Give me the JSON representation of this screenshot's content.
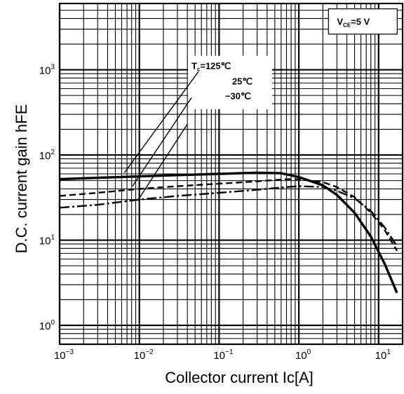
{
  "chart_data": {
    "type": "line",
    "title": "",
    "xlabel": "Collector current   Ic[A]",
    "ylabel": "D.C. current gain   hFE",
    "x_scale": "log",
    "y_scale": "log",
    "xlim": [
      0.001,
      20
    ],
    "ylim": [
      0.6,
      6000
    ],
    "grid": true,
    "x_ticks": [
      {
        "value": 0.001,
        "base": "10",
        "exp": "−3"
      },
      {
        "value": 0.01,
        "base": "10",
        "exp": "−2"
      },
      {
        "value": 0.1,
        "base": "10",
        "exp": "−1"
      },
      {
        "value": 1,
        "base": "10",
        "exp": "0"
      },
      {
        "value": 10,
        "base": "10",
        "exp": "1"
      }
    ],
    "y_ticks": [
      {
        "value": 1,
        "base": "10",
        "exp": "0"
      },
      {
        "value": 10,
        "base": "10",
        "exp": "1"
      },
      {
        "value": 100,
        "base": "10",
        "exp": "2"
      },
      {
        "value": 1000,
        "base": "10",
        "exp": "3"
      }
    ],
    "condition": {
      "label": "V",
      "sub": "CE",
      "value": "=5 V"
    },
    "legend_header": {
      "label": "T",
      "sub": "c",
      "value": "=125℃"
    },
    "series": [
      {
        "name": "125℃",
        "label": "=125℃",
        "style": "solid",
        "x": [
          0.001,
          0.003,
          0.01,
          0.03,
          0.1,
          0.3,
          0.6,
          1.0,
          2.0,
          3.0,
          5.0,
          8.0,
          12.0,
          17.0
        ],
        "y": [
          52,
          54,
          56,
          58,
          60,
          62,
          61,
          55,
          44,
          34,
          21,
          11,
          5.2,
          2.4
        ]
      },
      {
        "name": "25℃",
        "label": "25℃",
        "style": "dashed",
        "x": [
          0.001,
          0.003,
          0.01,
          0.03,
          0.1,
          0.3,
          0.7,
          1.0,
          2.0,
          3.0,
          5.0,
          8.0,
          12.0,
          17.0
        ],
        "y": [
          33,
          36,
          40,
          43,
          46,
          49,
          52,
          52,
          48,
          42,
          32,
          21,
          13,
          7.5
        ]
      },
      {
        "name": "−30℃",
        "label": "−30℃",
        "style": "dashdot",
        "x": [
          0.001,
          0.003,
          0.01,
          0.03,
          0.1,
          0.3,
          0.7,
          1.0,
          2.0,
          3.0,
          5.0,
          8.0,
          12.0,
          17.0
        ],
        "y": [
          24,
          26,
          30,
          33,
          36,
          39,
          42,
          43,
          42,
          38,
          31,
          22,
          14,
          8.5
        ]
      }
    ],
    "leaders": [
      {
        "from": [
          0.055,
          950
        ],
        "to": [
          0.0065,
          62
        ]
      },
      {
        "from": [
          0.045,
          470
        ],
        "to": [
          0.0082,
          43
        ]
      },
      {
        "from": [
          0.04,
          230
        ],
        "to": [
          0.0095,
          29
        ]
      }
    ]
  }
}
